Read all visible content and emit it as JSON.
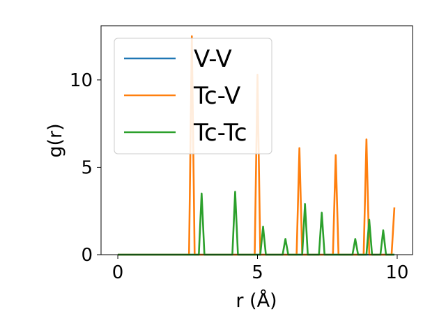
{
  "chart_data": {
    "type": "line",
    "xlabel": "r (Å)",
    "ylabel": "g(r)",
    "xlim": [
      -0.6,
      10.55
    ],
    "ylim": [
      0,
      13.1
    ],
    "x_ticks": [
      0,
      5,
      10
    ],
    "y_ticks": [
      0,
      5,
      10
    ],
    "grid": false,
    "legend_position": "top-left",
    "colors": {
      "V-V": "#1f77b4",
      "Tc-V": "#ff7f0e",
      "Tc-Tc": "#2ca02c"
    },
    "series": [
      {
        "name": "V-V",
        "x": [
          0,
          9.9
        ],
        "values": [
          0,
          0
        ]
      },
      {
        "name": "Tc-V",
        "x": [
          0,
          2.55,
          2.65,
          2.75,
          4.9,
          5.0,
          5.1,
          6.4,
          6.5,
          6.6,
          7.7,
          7.8,
          7.9,
          8.8,
          8.9,
          9.0,
          9.8,
          9.9
        ],
        "values": [
          0,
          0,
          12.5,
          0,
          0,
          10.3,
          0,
          0,
          6.1,
          0,
          0,
          5.7,
          0,
          0,
          6.6,
          0,
          0,
          2.7
        ]
      },
      {
        "name": "Tc-Tc",
        "x": [
          0,
          2.9,
          3.0,
          3.1,
          4.1,
          4.2,
          4.3,
          5.1,
          5.2,
          5.3,
          5.9,
          6.0,
          6.1,
          6.6,
          6.7,
          6.8,
          7.2,
          7.3,
          7.4,
          8.4,
          8.5,
          8.6,
          8.9,
          9.0,
          9.1,
          9.4,
          9.5,
          9.6,
          9.9
        ],
        "values": [
          0,
          0,
          3.5,
          0,
          0,
          3.6,
          0,
          0,
          1.6,
          0,
          0,
          0.9,
          0,
          0,
          2.9,
          0,
          0,
          2.4,
          0,
          0,
          0.9,
          0,
          0,
          2.0,
          0,
          0,
          1.4,
          0,
          0
        ]
      }
    ]
  }
}
